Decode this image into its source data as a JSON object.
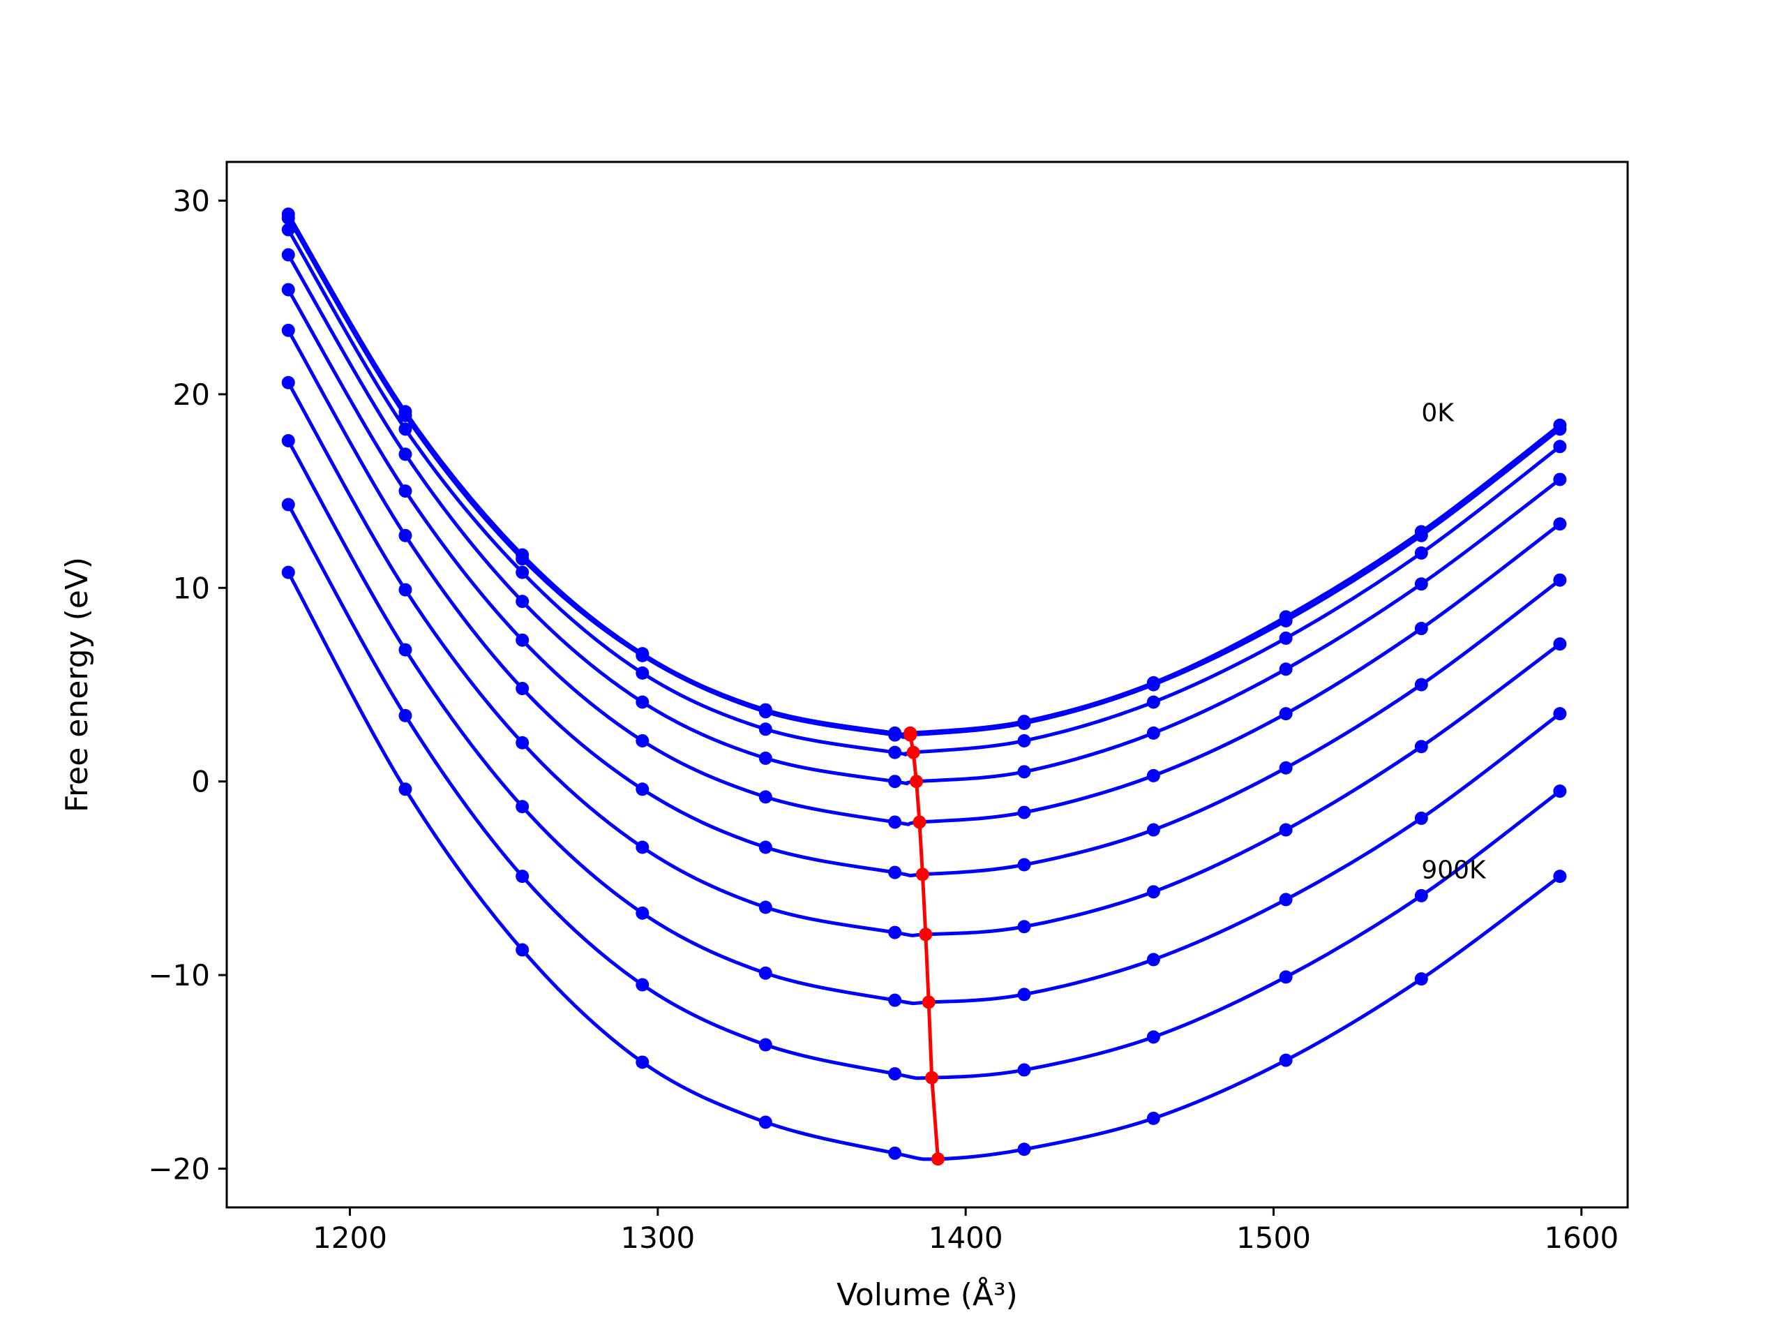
{
  "chart_data": {
    "type": "line",
    "xlabel": "Volume (Å³)",
    "ylabel": "Free energy (eV)",
    "xlim": [
      1160,
      1615
    ],
    "ylim": [
      -22,
      32
    ],
    "xticks": [
      1200,
      1300,
      1400,
      1500,
      1600
    ],
    "yticks": [
      -20,
      -10,
      0,
      10,
      20,
      30
    ],
    "xtick_labels": [
      "1200",
      "1300",
      "1400",
      "1500",
      "1600"
    ],
    "ytick_labels": [
      "−20",
      "−10",
      "0",
      "10",
      "20",
      "30"
    ],
    "annotations": [
      {
        "text": "0K",
        "x": 1548,
        "y": 18.6
      },
      {
        "text": "900K",
        "x": 1548,
        "y": -5.0
      }
    ],
    "volumes": [
      1180,
      1218,
      1256,
      1295,
      1335,
      1377,
      1419,
      1461,
      1504,
      1548,
      1593
    ],
    "series": [
      {
        "color": "#0000ff",
        "values": [
          29.3,
          19.1,
          11.7,
          6.6,
          3.7,
          2.5,
          3.1,
          5.1,
          8.5,
          12.9,
          18.4
        ],
        "min": [
          1382,
          2.5
        ]
      },
      {
        "color": "#0000ff",
        "values": [
          29.1,
          18.9,
          11.5,
          6.5,
          3.6,
          2.4,
          3.0,
          5.0,
          8.3,
          12.7,
          18.2
        ],
        "min": [
          1382,
          2.4
        ]
      },
      {
        "color": "#0000ff",
        "values": [
          28.5,
          18.2,
          10.8,
          5.6,
          2.7,
          1.5,
          2.1,
          4.1,
          7.4,
          11.8,
          17.3
        ],
        "min": [
          1383,
          1.5
        ]
      },
      {
        "color": "#0000ff",
        "values": [
          27.2,
          16.9,
          9.3,
          4.1,
          1.2,
          0.0,
          0.5,
          2.5,
          5.8,
          10.2,
          15.6
        ],
        "min": [
          1384,
          0.0
        ]
      },
      {
        "color": "#0000ff",
        "values": [
          25.4,
          15.0,
          7.3,
          2.1,
          -0.8,
          -2.1,
          -1.6,
          0.3,
          3.5,
          7.9,
          13.3
        ],
        "min": [
          1385,
          -2.1
        ]
      },
      {
        "color": "#0000ff",
        "values": [
          23.3,
          12.7,
          4.8,
          -0.4,
          -3.4,
          -4.7,
          -4.3,
          -2.5,
          0.7,
          5.0,
          10.4
        ],
        "min": [
          1386,
          -4.8
        ]
      },
      {
        "color": "#0000ff",
        "values": [
          20.6,
          9.9,
          2.0,
          -3.4,
          -6.5,
          -7.8,
          -7.5,
          -5.7,
          -2.5,
          1.8,
          7.1
        ],
        "min": [
          1387,
          -7.9
        ]
      },
      {
        "color": "#0000ff",
        "values": [
          17.6,
          6.8,
          -1.3,
          -6.8,
          -9.9,
          -11.3,
          -11.0,
          -9.2,
          -6.1,
          -1.9,
          3.5
        ],
        "min": [
          1388,
          -11.4
        ]
      },
      {
        "color": "#0000ff",
        "values": [
          14.3,
          3.4,
          -4.9,
          -10.5,
          -13.6,
          -15.1,
          -14.9,
          -13.2,
          -10.1,
          -5.9,
          -0.5
        ],
        "min": [
          1389,
          -15.3
        ]
      },
      {
        "color": "#0000ff",
        "values": [
          10.8,
          -0.4,
          -8.7,
          -14.5,
          -17.6,
          -19.2,
          -19.0,
          -17.4,
          -14.4,
          -10.2,
          -4.9
        ],
        "min": [
          1391,
          -19.5
        ]
      }
    ],
    "minima_line": {
      "color": "#ff0000",
      "x": [
        1382,
        1382,
        1383,
        1384,
        1385,
        1386,
        1387,
        1388,
        1389,
        1391
      ],
      "y": [
        2.5,
        2.4,
        1.5,
        0.0,
        -2.1,
        -4.8,
        -7.9,
        -11.4,
        -15.3,
        -19.5
      ]
    }
  }
}
